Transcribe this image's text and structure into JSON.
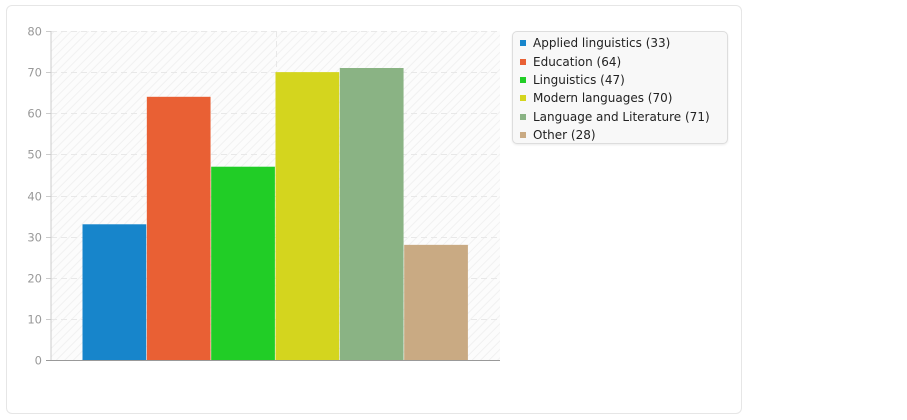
{
  "chart_data": {
    "type": "bar",
    "categories": [
      "Applied linguistics",
      "Education",
      "Linguistics",
      "Modern languages",
      "Language and Literature",
      "Other"
    ],
    "values": [
      33,
      64,
      47,
      70,
      71,
      28
    ],
    "colors": [
      "#1785cb",
      "#e96034",
      "#21cd26",
      "#d4d51e",
      "#8ab384",
      "#c9aa83"
    ],
    "legend_labels": [
      "Applied linguistics (33)",
      "Education (64)",
      "Linguistics (47)",
      "Modern languages (70)",
      "Language and Literature (71)",
      "Other (28)"
    ],
    "ylim": [
      0,
      80
    ],
    "yticks": [
      "0",
      "10",
      "20",
      "30",
      "40",
      "50",
      "60",
      "70",
      "80"
    ],
    "grid": true,
    "legend_position": "right"
  }
}
